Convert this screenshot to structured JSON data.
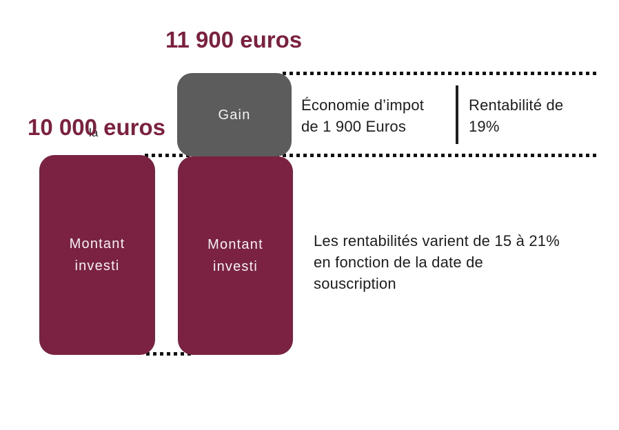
{
  "colors": {
    "bar": "#7b2142",
    "gain": "#5d5c5c",
    "title": "#7d1f3f",
    "text": "#1d1d1d",
    "dots": "#111111",
    "box-label": "#f6f3f4",
    "background": "#ffffff"
  },
  "labels": {
    "total_value": "11 900 euros",
    "invested_value": "10 000 euros",
    "stray": "la",
    "gain": "Gain",
    "invested_box": "Montant\ninvesti",
    "tax_saving": "Économie d’impot\nde 1 900 Euros",
    "rentability": "Rentabilité de\n19%",
    "note": "Les rentabilités varient de 15 à 21%\nen fonction de la date de\nsouscription"
  },
  "chart_data": {
    "type": "bar",
    "title": "",
    "categories": [
      "10 000 euros",
      "11 900 euros"
    ],
    "series": [
      {
        "name": "Montant investi",
        "values": [
          10000,
          10000
        ],
        "color": "#7b2142"
      },
      {
        "name": "Gain",
        "values": [
          0,
          1900
        ],
        "color": "#5d5c5c"
      }
    ],
    "totals": [
      10000,
      11900
    ],
    "unit": "euros",
    "ylim": [
      0,
      11900
    ],
    "grid": false,
    "legend_position": "none",
    "annotations": [
      "Économie d’impot de 1 900 Euros",
      "Rentabilité de 19%",
      "Les rentabilités varient de 15 à 21% en fonction de la date de souscription"
    ]
  }
}
